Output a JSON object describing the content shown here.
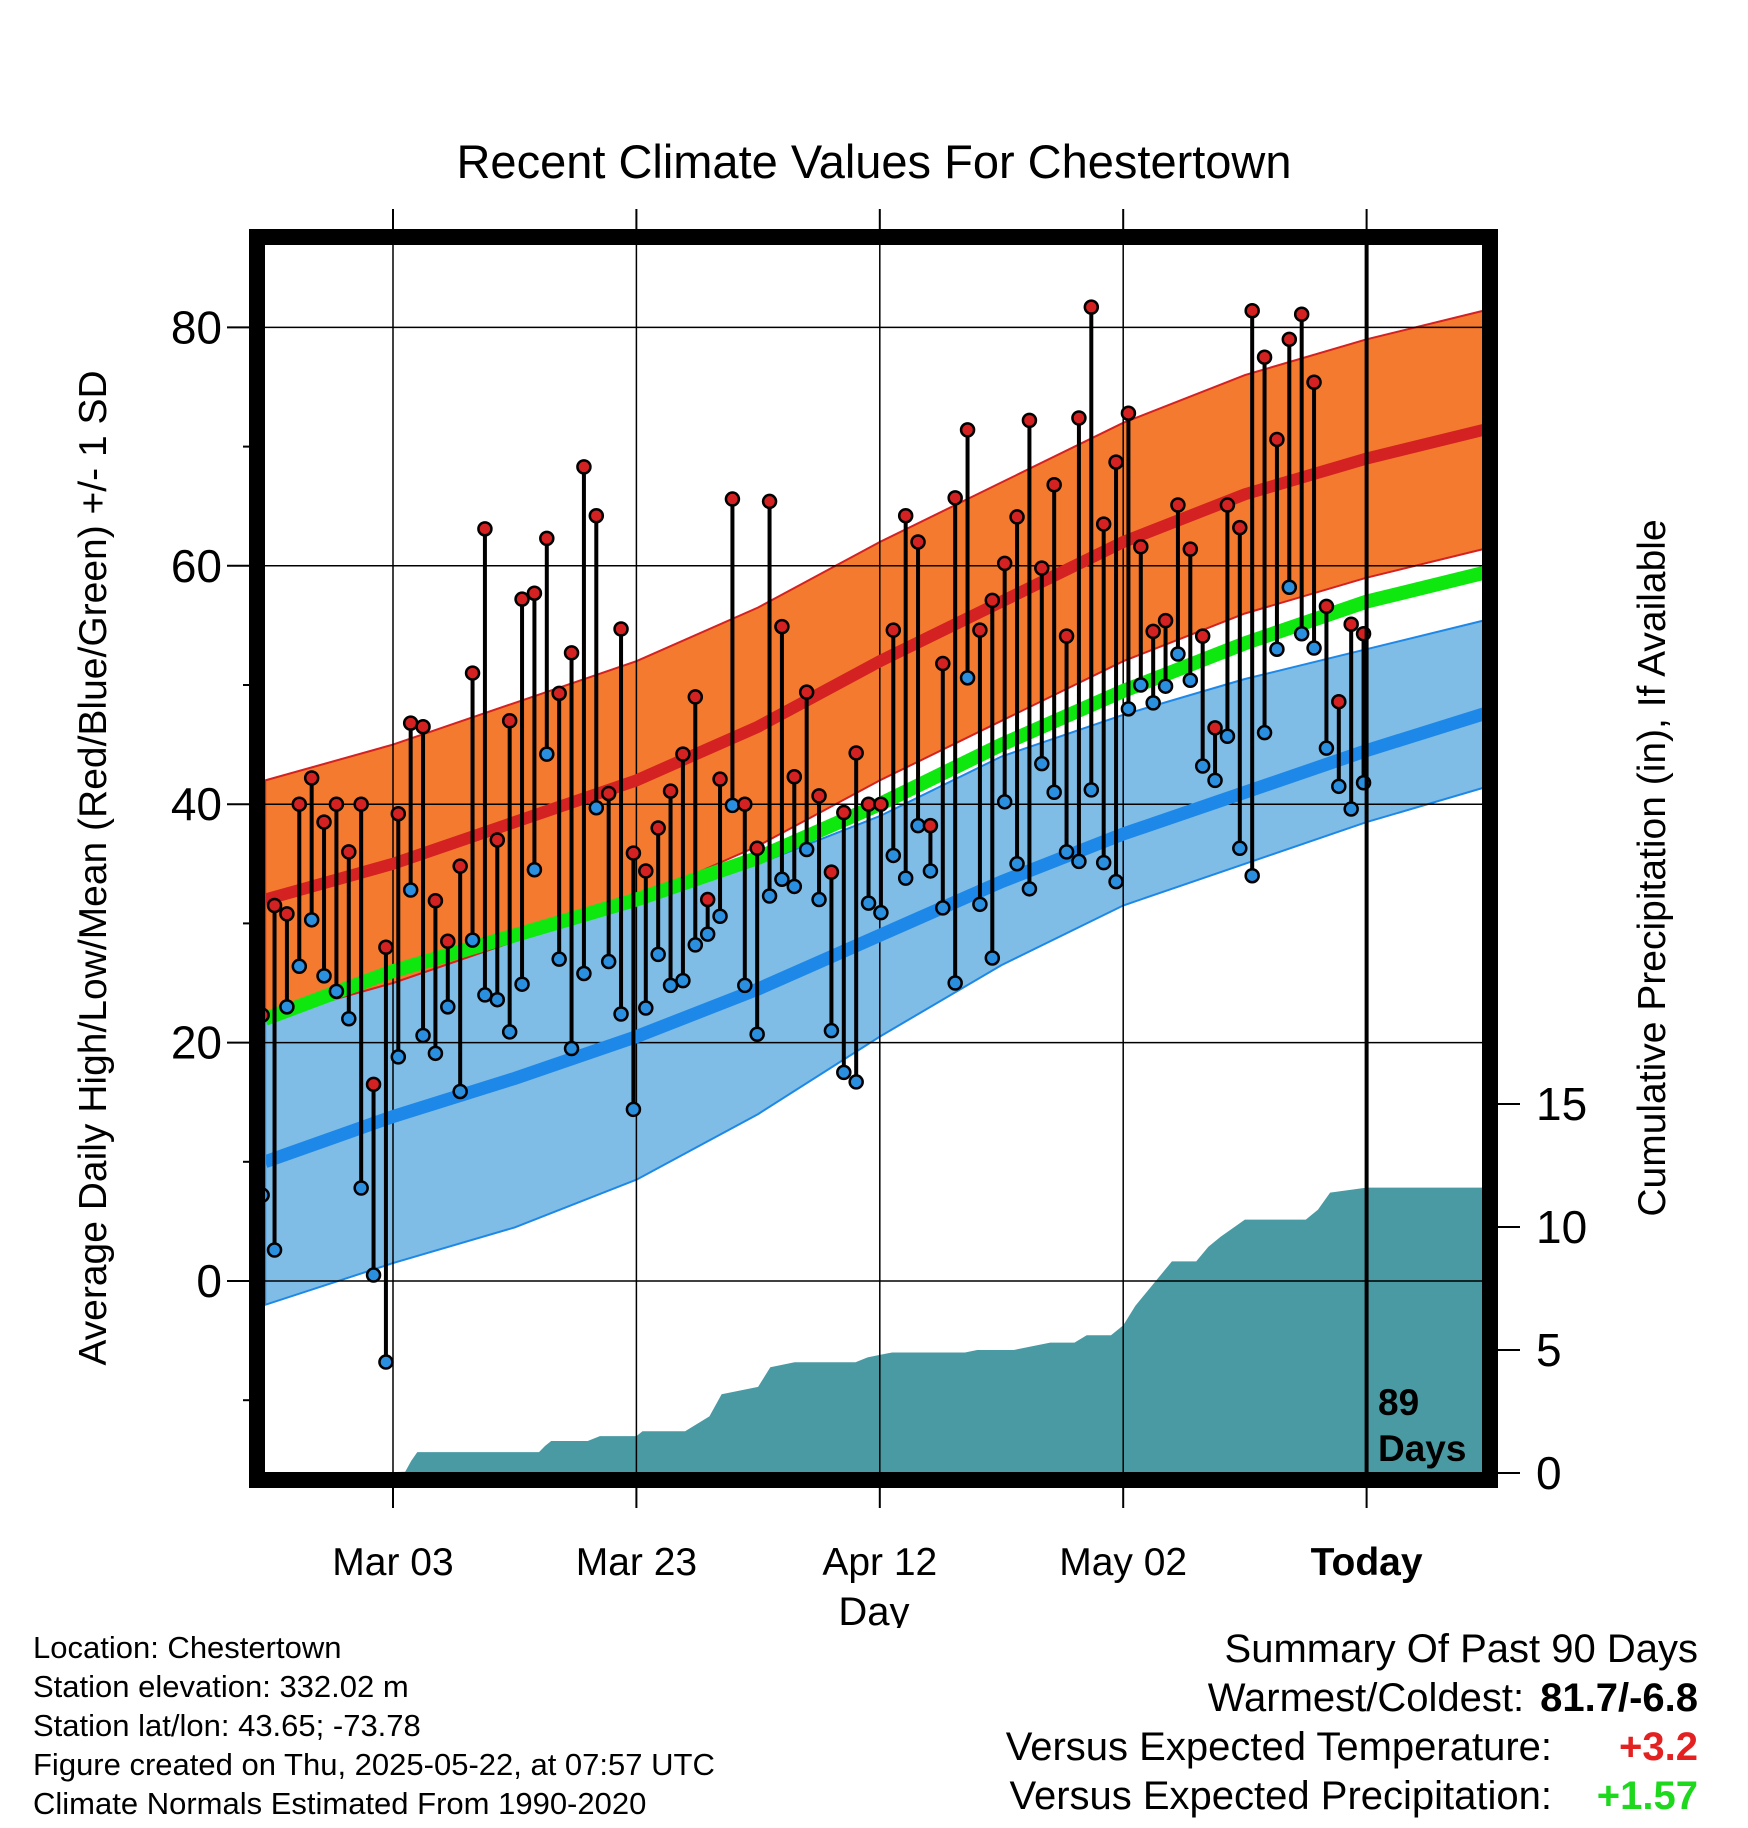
{
  "chart_data": {
    "type": "line",
    "title": "Recent Climate Values For Chestertown",
    "xlabel": "Day",
    "ylabel": "Average Daily High/Low/Mean (Red/Blue/Green) +/- 1 SD",
    "y2label": "Cumulative Precipitation (in), If Available",
    "ylim": [
      -16,
      88
    ],
    "y2lim": [
      0,
      40
    ],
    "yticks": [
      "0",
      "20",
      "40",
      "60",
      "80"
    ],
    "y2ticks": [
      "0",
      "5",
      "10",
      "15"
    ],
    "xlim": [
      -11.5,
      90
    ],
    "xtick_labels": [
      "Mar 03",
      "Mar 23",
      "Apr 12",
      "May 02",
      "Today"
    ],
    "xtick_days": [
      0,
      20,
      40,
      60,
      80
    ],
    "today_marker": {
      "day": 80,
      "label_top": "89",
      "label_bottom": "Days"
    },
    "grid": true,
    "colors": {
      "high": "#d42121",
      "high_band": "#f47a30",
      "low": "#1e88e8",
      "low_band": "#7fbde6",
      "mean": "#0ee80e",
      "precip": "#4a9aa3",
      "frame": "#000000"
    },
    "normals": {
      "days": [
        -10.5,
        0,
        10,
        20,
        30,
        40,
        50,
        60,
        70,
        80,
        90
      ],
      "high": [
        32,
        35,
        38.5,
        42,
        46.5,
        52,
        57,
        62,
        66,
        69,
        71.5
      ],
      "high_sd": 10,
      "mean": [
        22,
        26,
        29,
        32,
        35.5,
        40,
        45,
        49.5,
        53.5,
        57,
        59.5
      ],
      "low": [
        10,
        13.8,
        17,
        20.5,
        24.5,
        29,
        33.5,
        37.5,
        41,
        44.5,
        47.7
      ],
      "low_upper": [
        24,
        26.5,
        29,
        31.5,
        35,
        39,
        44,
        47.5,
        50.5,
        53,
        55.5
      ],
      "low_lower": [
        -2,
        1.5,
        4.5,
        8.5,
        14,
        20.5,
        26.5,
        31.5,
        35,
        38.5,
        41.5
      ]
    },
    "series": [
      {
        "name": "Daily High",
        "values": [
          22.3,
          31.5,
          30.8,
          40,
          42.2,
          38.5,
          40,
          36,
          40,
          16.5,
          28,
          39.2,
          46.8,
          46.5,
          31.9,
          28.5,
          34.8,
          51,
          63.1,
          37,
          47,
          57.2,
          57.7,
          62.3,
          49.3,
          52.7,
          68.3,
          64.2,
          40.9,
          54.7,
          35.9,
          34.4,
          38,
          41.1,
          44.2,
          49,
          32,
          42.1,
          65.6,
          40,
          36.3,
          65.4,
          54.9,
          42.3,
          49.4,
          40.7,
          34.3,
          39.3,
          44.3,
          40,
          40,
          54.6,
          64.2,
          62,
          38.2,
          51.8,
          65.7,
          71.4,
          54.6,
          57.1,
          60.2,
          64.1,
          72.2,
          59.8,
          66.8,
          54.1,
          72.4,
          81.7,
          63.5,
          68.7,
          72.8,
          61.6,
          54.5,
          55.4,
          65.1,
          61.4,
          54.1,
          46.4,
          65.1,
          63.2,
          81.4,
          77.5,
          70.6,
          79,
          81.1,
          75.4,
          56.6,
          48.6,
          55.1,
          54.3
        ]
      },
      {
        "name": "Daily Low",
        "values": [
          7.2,
          2.6,
          23,
          26.4,
          30.3,
          25.6,
          24.3,
          22,
          7.8,
          0.5,
          -6.8,
          18.8,
          32.8,
          20.6,
          19.1,
          23,
          15.9,
          28.6,
          24,
          23.6,
          20.9,
          24.9,
          34.5,
          44.2,
          27,
          19.5,
          25.8,
          39.7,
          26.8,
          22.4,
          14.4,
          22.9,
          27.4,
          24.8,
          25.2,
          28.2,
          29.1,
          30.6,
          39.9,
          24.8,
          20.7,
          32.3,
          33.7,
          33.1,
          36.2,
          32,
          21,
          17.5,
          16.7,
          31.7,
          30.9,
          35.7,
          33.8,
          38.2,
          34.4,
          31.3,
          25,
          50.6,
          31.6,
          27.1,
          40.2,
          35,
          32.9,
          43.4,
          41,
          36,
          35.2,
          41.2,
          35.1,
          33.5,
          48,
          50,
          48.5,
          49.9,
          52.6,
          50.4,
          43.2,
          42,
          45.7,
          36.3,
          34,
          46,
          53,
          58.2,
          54.3,
          53.1,
          44.7,
          41.5,
          39.6,
          41.8
        ]
      },
      {
        "name": "Cumulative Precipitation",
        "days": [
          -11.5,
          -10,
          -3,
          1,
          1.5,
          2,
          12,
          12.5,
          13,
          16,
          17,
          20,
          20.5,
          24,
          26,
          27,
          30,
          31,
          33,
          34,
          38,
          39,
          40,
          41,
          47,
          48,
          51,
          54,
          56,
          57,
          59,
          60,
          61,
          64,
          66,
          67,
          68,
          70,
          71,
          72,
          75,
          76,
          77,
          80,
          90
        ],
        "values": [
          0,
          0,
          0,
          0.05,
          0.5,
          0.85,
          0.85,
          1.1,
          1.3,
          1.3,
          1.5,
          1.5,
          1.7,
          1.7,
          2.3,
          3.2,
          3.5,
          4.3,
          4.5,
          4.5,
          4.5,
          4.7,
          4.8,
          4.9,
          4.9,
          5.0,
          5.0,
          5.3,
          5.3,
          5.6,
          5.6,
          6.0,
          6.8,
          8.6,
          8.6,
          9.2,
          9.6,
          10.3,
          10.3,
          10.3,
          10.3,
          10.7,
          11.4,
          11.6,
          11.6
        ]
      }
    ]
  },
  "info": {
    "location": "Location: Chestertown",
    "elevation": "Station elevation: 332.02 m",
    "latlon": "Station lat/lon: 43.65; -73.78",
    "created": "Figure created on Thu, 2025-05-22, at 07:57 UTC",
    "normals": "Climate Normals Estimated From 1990-2020"
  },
  "summary": {
    "title": "Summary Of Past 90 Days",
    "warm_cold_label": "Warmest/Coldest:",
    "warm_cold_value": "81.7/-6.8",
    "temp_label": "Versus Expected Temperature:",
    "temp_value": "+3.2",
    "temp_color": "#e32121",
    "precip_label": "Versus Expected Precipitation:",
    "precip_value": "+1.57",
    "precip_color": "#1ed81e"
  }
}
